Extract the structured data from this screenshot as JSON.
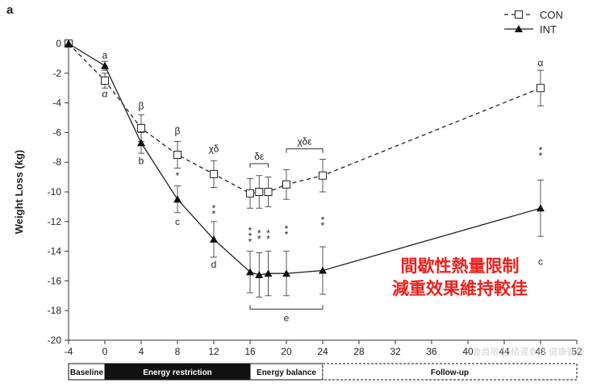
{
  "panel_label": "a",
  "annotation": {
    "line1": "間歇性熱量限制",
    "line2": "減重效果維持較佳",
    "color": "#e8231e"
  },
  "watermark": "會員限定 精選素材 健康醫學",
  "chart_data": {
    "type": "line",
    "ylabel": "Weight Loss (kg)",
    "xlabel": "",
    "xlim": [
      -4,
      52
    ],
    "ylim": [
      -20,
      0
    ],
    "xticks": [
      "-4",
      "0",
      "4",
      "8",
      "12",
      "16",
      "20",
      "24",
      "28",
      "32",
      "36",
      "40",
      "44",
      "48",
      "52"
    ],
    "yticks": [
      "0",
      "-2",
      "-4",
      "-6",
      "-8",
      "-10",
      "-12",
      "-14",
      "-16",
      "-18",
      "-20"
    ],
    "grid": false,
    "legend_position": "top-right",
    "series": [
      {
        "name": "CON",
        "style": "dashed",
        "marker": "open-square",
        "color": "#222222",
        "points": [
          {
            "x": -4,
            "y": 0,
            "err": 0
          },
          {
            "x": 0,
            "y": -2.5,
            "err": 0.5
          },
          {
            "x": 4,
            "y": -5.7,
            "err": 0.9
          },
          {
            "x": 8,
            "y": -7.5,
            "err": 0.9
          },
          {
            "x": 12,
            "y": -8.8,
            "err": 0.9
          },
          {
            "x": 16,
            "y": -10.1,
            "err": 1.0
          },
          {
            "x": 17,
            "y": -10.0,
            "err": 1.1
          },
          {
            "x": 18,
            "y": -10.0,
            "err": 1.0
          },
          {
            "x": 20,
            "y": -9.5,
            "err": 1.0
          },
          {
            "x": 24,
            "y": -8.9,
            "err": 1.1
          },
          {
            "x": 48,
            "y": -3.0,
            "err": 1.2
          }
        ]
      },
      {
        "name": "INT",
        "style": "solid",
        "marker": "filled-triangle",
        "color": "#222222",
        "points": [
          {
            "x": -4,
            "y": 0,
            "err": 0
          },
          {
            "x": 0,
            "y": -1.5,
            "err": 0.3
          },
          {
            "x": 4,
            "y": -6.7,
            "err": 0.7
          },
          {
            "x": 8,
            "y": -10.5,
            "err": 0.9
          },
          {
            "x": 12,
            "y": -13.2,
            "err": 1.2
          },
          {
            "x": 16,
            "y": -15.4,
            "err": 1.4
          },
          {
            "x": 17,
            "y": -15.6,
            "err": 1.5
          },
          {
            "x": 18,
            "y": -15.5,
            "err": 1.5
          },
          {
            "x": 20,
            "y": -15.5,
            "err": 1.5
          },
          {
            "x": 24,
            "y": -15.3,
            "err": 1.6
          },
          {
            "x": 48,
            "y": -11.1,
            "err": 1.9
          }
        ]
      }
    ],
    "annotations": [
      {
        "x": 0,
        "y": -0.8,
        "text": "a"
      },
      {
        "x": 0,
        "y": -3.4,
        "text": "α"
      },
      {
        "x": 4,
        "y": -4.2,
        "text": "β"
      },
      {
        "x": 4,
        "y": -7.9,
        "text": "b"
      },
      {
        "x": 8,
        "y": -5.9,
        "text": "β"
      },
      {
        "x": 8,
        "y": -8.9,
        "text": "*"
      },
      {
        "x": 8,
        "y": -12.0,
        "text": "c"
      },
      {
        "x": 12,
        "y": -7.1,
        "text": "χδ"
      },
      {
        "x": 12,
        "y": -11.3,
        "text": "**"
      },
      {
        "x": 12,
        "y": -14.9,
        "text": "d"
      },
      {
        "x": 16,
        "y": -13.0,
        "text": "***"
      },
      {
        "x": 17,
        "y": -13.0,
        "text": "**"
      },
      {
        "x": 18,
        "y": -13.0,
        "text": "**"
      },
      {
        "x": 20,
        "y": -12.7,
        "text": "**"
      },
      {
        "x": 24,
        "y": -12.1,
        "text": "**"
      },
      {
        "x": 17,
        "y": -7.6,
        "text": "δε"
      },
      {
        "x": 22,
        "y": -6.6,
        "text": "χδε"
      },
      {
        "x": 20,
        "y": -18.5,
        "text": "e"
      },
      {
        "x": 48,
        "y": -1.3,
        "text": "α"
      },
      {
        "x": 48,
        "y": -7.4,
        "text": "**"
      },
      {
        "x": 48,
        "y": -14.7,
        "text": "c"
      }
    ],
    "phases": [
      {
        "label": "Baseline",
        "from": -4,
        "to": 0,
        "fill": "#ffffff",
        "text_color": "#111111",
        "border": "solid"
      },
      {
        "label": "Energy restriction",
        "from": 0,
        "to": 16,
        "fill": "#111111",
        "text_color": "#ffffff",
        "border": "solid"
      },
      {
        "label": "Energy balance",
        "from": 16,
        "to": 24,
        "fill": "#ffffff",
        "text_color": "#111111",
        "border": "solid"
      },
      {
        "label": "Follow-up",
        "from": 24,
        "to": 52,
        "fill": "#ffffff",
        "text_color": "#111111",
        "border": "dashed"
      }
    ]
  }
}
